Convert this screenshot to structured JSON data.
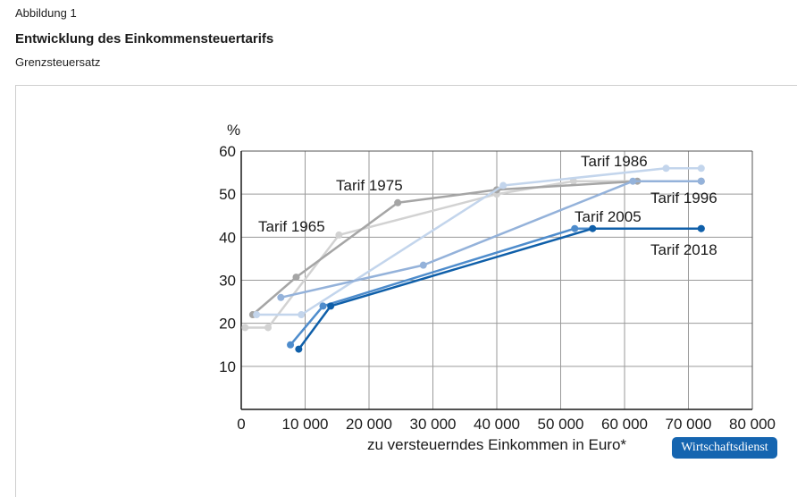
{
  "figure": {
    "label": "Abbildung 1",
    "title": "Entwicklung des Einkommensteuertarifs",
    "subtitle": "Grenzsteuersatz",
    "source_badge": "Wirtschaftsdienst"
  },
  "chart_data": {
    "type": "line",
    "title": "Entwicklung des Einkommensteuertarifs",
    "ylabel": "%",
    "xlabel": "zu versteuerndes Einkommen in Euro*",
    "xlim": [
      0,
      80000
    ],
    "ylim": [
      0,
      60
    ],
    "x_ticks": [
      0,
      10000,
      20000,
      30000,
      40000,
      50000,
      60000,
      70000,
      80000
    ],
    "x_tick_labels": [
      "0",
      "10 000",
      "20 000",
      "30 000",
      "40 000",
      "50 000",
      "60 000",
      "70 000",
      "80 000"
    ],
    "y_ticks": [
      10,
      20,
      30,
      40,
      50,
      60
    ],
    "y_tick_labels": [
      "10",
      "20",
      "30",
      "40",
      "50",
      "60"
    ],
    "grid": true,
    "series": [
      {
        "name": "Tarif 1965",
        "color": "#d2d2d2",
        "points": [
          [
            600,
            19
          ],
          [
            4200,
            19
          ],
          [
            15300,
            40.5
          ],
          [
            40000,
            50
          ],
          [
            52000,
            53
          ],
          [
            72000,
            53
          ]
        ]
      },
      {
        "name": "Tarif 1975",
        "color": "#a5a5a5",
        "points": [
          [
            1800,
            22
          ],
          [
            8600,
            30.7
          ],
          [
            24500,
            48
          ],
          [
            40000,
            51
          ],
          [
            62000,
            53
          ],
          [
            72000,
            53
          ]
        ]
      },
      {
        "name": "Tarif 1986",
        "color": "#c3d5ec",
        "points": [
          [
            2400,
            22
          ],
          [
            9400,
            22
          ],
          [
            41000,
            52
          ],
          [
            66500,
            56
          ],
          [
            72000,
            56
          ]
        ]
      },
      {
        "name": "Tarif 1996",
        "color": "#94b2da",
        "points": [
          [
            6200,
            26
          ],
          [
            28500,
            33.5
          ],
          [
            61300,
            53
          ],
          [
            72000,
            53
          ]
        ]
      },
      {
        "name": "Tarif 2005",
        "color": "#4e8ccc",
        "points": [
          [
            7700,
            15
          ],
          [
            12800,
            24
          ],
          [
            52200,
            42
          ],
          [
            72000,
            42
          ]
        ]
      },
      {
        "name": "Tarif 2018",
        "color": "#0f5fa9",
        "points": [
          [
            9000,
            14
          ],
          [
            14000,
            24
          ],
          [
            55000,
            42
          ],
          [
            72000,
            42
          ]
        ]
      }
    ],
    "annotations": [
      "Tarif 1965",
      "Tarif 1975",
      "Tarif 1986",
      "Tarif 1996",
      "Tarif 2005",
      "Tarif 2018"
    ]
  }
}
